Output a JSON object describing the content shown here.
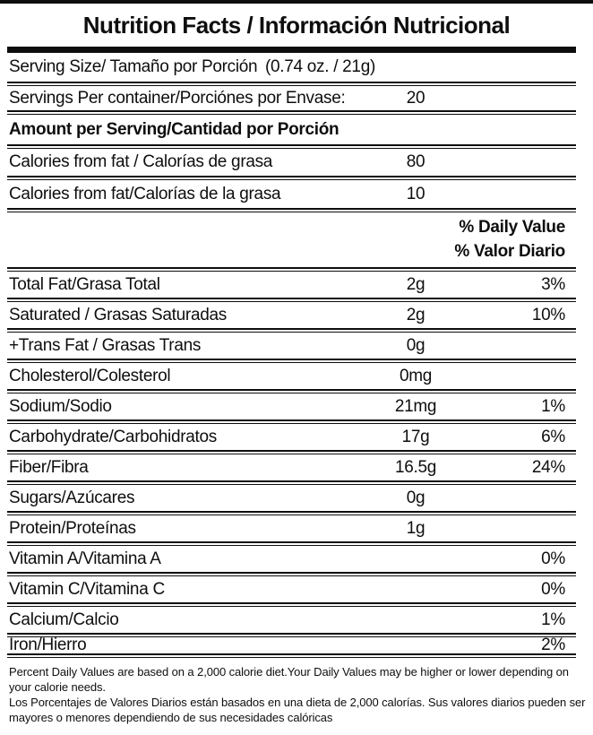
{
  "label": {
    "title": "Nutrition Facts / Información Nutricional",
    "serving_size": {
      "label": "Serving Size/ Tamaño por Porción",
      "value": "(0.74 oz. / 21g)"
    },
    "servings_per_container": {
      "label": "Servings Per container/Porciónes por Envase:",
      "value": "20"
    },
    "amount_per_serving": "Amount per Serving/Cantidad por Porción",
    "calories_rows": [
      {
        "label": "Calories from fat / Calorías de grasa",
        "value": "80"
      },
      {
        "label": "Calories from fat/Calorías de la grasa",
        "value": "10"
      }
    ],
    "daily_value_header": {
      "line1": "% Daily Value",
      "line2": "% Valor Diario"
    },
    "nutrients": [
      {
        "label": "Total Fat/Grasa Total",
        "amount": "2g",
        "dv": "3%"
      },
      {
        "label": "Saturated / Grasas Saturadas",
        "amount": "2g",
        "dv": "10%"
      },
      {
        "label": "+Trans Fat / Grasas Trans",
        "amount": "0g",
        "dv": ""
      },
      {
        "label": "Cholesterol/Colesterol",
        "amount": "0mg",
        "dv": ""
      },
      {
        "label": "Sodium/Sodio",
        "amount": "21mg",
        "dv": "1%"
      },
      {
        "label": "Carbohydrate/Carbohidratos",
        "amount": "17g",
        "dv": "6%"
      },
      {
        "label": "Fiber/Fibra",
        "amount": "16.5g",
        "dv": "24%"
      },
      {
        "label": "Sugars/Azúcares",
        "amount": "0g",
        "dv": ""
      },
      {
        "label": "Protein/Proteínas",
        "amount": "1g",
        "dv": ""
      },
      {
        "label": "Vitamin A/Vitamina A",
        "amount": "",
        "dv": "0%"
      },
      {
        "label": "Vitamin C/Vitamina C",
        "amount": "",
        "dv": "0%"
      },
      {
        "label": "Calcium/Calcio",
        "amount": "",
        "dv": "1%"
      },
      {
        "label": "Iron/Hierro",
        "amount": "",
        "dv": "2%"
      }
    ],
    "footnotes": {
      "en": "Percent Daily Values are based on a 2,000 calorie diet.Your Daily Values may be higher or lower depending on your calorie needs.",
      "es": "Los Porcentajes de Valores Diarios están basados en una dieta de 2,000 calorías. Sus valores diarios pueden ser mayores o menores dependiendo de sus necesidades calóricas"
    },
    "colors": {
      "ink": "#0e0e0e",
      "background": "#ffffff"
    }
  }
}
